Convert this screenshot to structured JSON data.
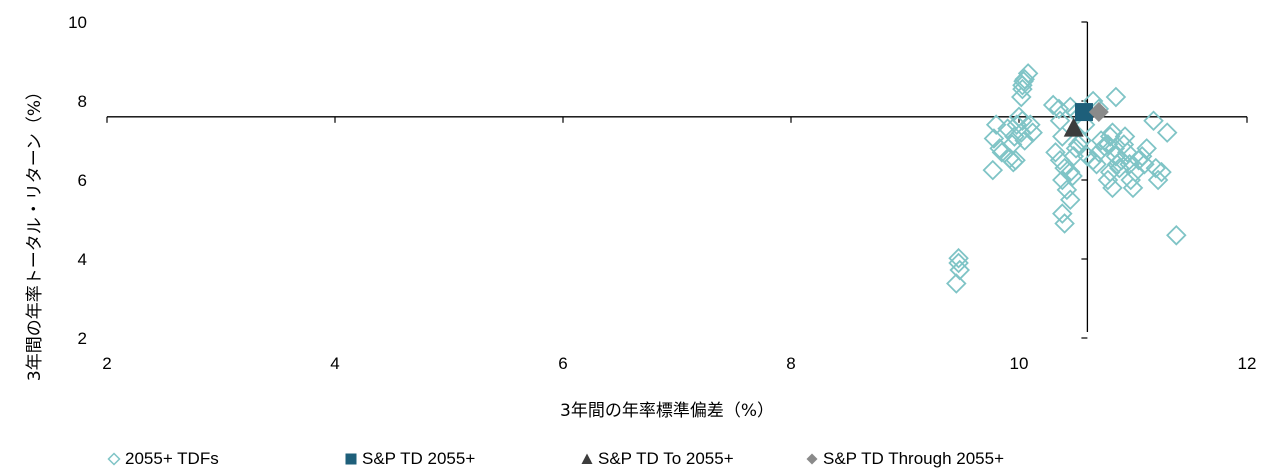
{
  "chart_data": {
    "type": "scatter",
    "xlabel": "3年間の年率標準偏差（%）",
    "ylabel": "3年間の年率トータル・リターン（%）",
    "xlim": [
      2,
      12
    ],
    "ylim": [
      2,
      10
    ],
    "x_ticks": [
      "2",
      "4",
      "6",
      "8",
      "10",
      "12"
    ],
    "y_ticks": [
      "2",
      "4",
      "6",
      "8",
      "10"
    ],
    "x_axis_crosses_y": 7.6,
    "y_axis_crosses_x": 10.6,
    "legend_position": "bottom",
    "series": [
      {
        "name": "2055+ TDFs",
        "marker": "diamond-open",
        "color": "#7fc4c6",
        "points": [
          [
            9.47,
            4.02
          ],
          [
            9.47,
            3.9
          ],
          [
            9.48,
            3.72
          ],
          [
            9.45,
            3.38
          ],
          [
            9.8,
            7.4
          ],
          [
            9.78,
            7.05
          ],
          [
            9.9,
            7.3
          ],
          [
            9.83,
            6.8
          ],
          [
            9.77,
            6.25
          ],
          [
            9.85,
            6.7
          ],
          [
            9.92,
            6.55
          ],
          [
            9.95,
            6.45
          ],
          [
            9.97,
            6.5
          ],
          [
            9.94,
            6.9
          ],
          [
            9.96,
            7.1
          ],
          [
            9.98,
            7.4
          ],
          [
            10.0,
            7.6
          ],
          [
            10.02,
            7.2
          ],
          [
            10.05,
            7.0
          ],
          [
            10.03,
            7.5
          ],
          [
            10.02,
            8.1
          ],
          [
            10.03,
            8.3
          ],
          [
            10.04,
            8.5
          ],
          [
            10.05,
            8.55
          ],
          [
            10.08,
            8.7
          ],
          [
            10.03,
            8.4
          ],
          [
            10.1,
            7.4
          ],
          [
            10.12,
            7.2
          ],
          [
            10.3,
            7.9
          ],
          [
            10.35,
            7.8
          ],
          [
            10.36,
            7.5
          ],
          [
            10.38,
            7.1
          ],
          [
            10.32,
            6.7
          ],
          [
            10.36,
            6.5
          ],
          [
            10.4,
            6.3
          ],
          [
            10.38,
            6.0
          ],
          [
            10.42,
            5.75
          ],
          [
            10.45,
            5.5
          ],
          [
            10.38,
            5.15
          ],
          [
            10.4,
            4.9
          ],
          [
            10.45,
            6.2
          ],
          [
            10.47,
            6.1
          ],
          [
            10.48,
            6.6
          ],
          [
            10.5,
            6.8
          ],
          [
            10.52,
            6.9
          ],
          [
            10.55,
            7.0
          ],
          [
            10.45,
            7.85
          ],
          [
            10.5,
            7.7
          ],
          [
            10.58,
            7.4
          ],
          [
            10.6,
            6.6
          ],
          [
            10.65,
            6.5
          ],
          [
            10.68,
            6.4
          ],
          [
            10.7,
            6.7
          ],
          [
            10.72,
            7.0
          ],
          [
            10.75,
            6.85
          ],
          [
            10.78,
            6.9
          ],
          [
            10.8,
            7.1
          ],
          [
            10.82,
            7.2
          ],
          [
            10.84,
            6.8
          ],
          [
            10.85,
            6.6
          ],
          [
            10.86,
            6.4
          ],
          [
            10.88,
            6.3
          ],
          [
            10.8,
            6.2
          ],
          [
            10.78,
            6.0
          ],
          [
            10.82,
            5.8
          ],
          [
            10.9,
            6.5
          ],
          [
            10.92,
            6.9
          ],
          [
            10.93,
            7.1
          ],
          [
            10.95,
            6.7
          ],
          [
            10.97,
            6.4
          ],
          [
            10.98,
            6.0
          ],
          [
            11.0,
            5.8
          ],
          [
            11.02,
            6.2
          ],
          [
            11.05,
            6.5
          ],
          [
            11.08,
            6.6
          ],
          [
            11.1,
            6.4
          ],
          [
            11.12,
            6.8
          ],
          [
            10.85,
            8.1
          ],
          [
            10.65,
            8.0
          ],
          [
            10.7,
            7.8
          ],
          [
            11.18,
            7.5
          ],
          [
            11.2,
            6.3
          ],
          [
            11.22,
            6.0
          ],
          [
            11.25,
            6.2
          ],
          [
            11.3,
            7.2
          ],
          [
            11.38,
            4.6
          ]
        ]
      },
      {
        "name": "S&P TD 2055+",
        "marker": "square",
        "color": "#1e5f7a",
        "points": [
          [
            10.57,
            7.72
          ]
        ]
      },
      {
        "name": "S&P TD To 2055+",
        "marker": "triangle",
        "color": "#3c3c3c",
        "points": [
          [
            10.48,
            7.3
          ]
        ]
      },
      {
        "name": "S&P TD Through 2055+",
        "marker": "diamond",
        "color": "#8a8a8a",
        "points": [
          [
            10.7,
            7.72
          ]
        ]
      }
    ]
  }
}
